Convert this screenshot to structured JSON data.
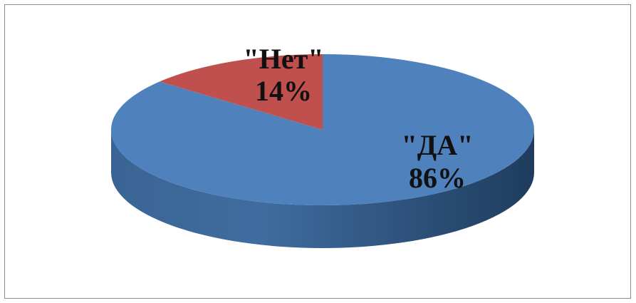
{
  "chart_data": {
    "type": "pie",
    "style": "3d",
    "slices": [
      {
        "label": "\"ДА\"",
        "value": 86,
        "percent_label": "86%",
        "color": "#4f81bd"
      },
      {
        "label": "\"Нет\"",
        "value": 14,
        "percent_label": "14%",
        "color": "#c0504d"
      }
    ],
    "legend": "none"
  }
}
